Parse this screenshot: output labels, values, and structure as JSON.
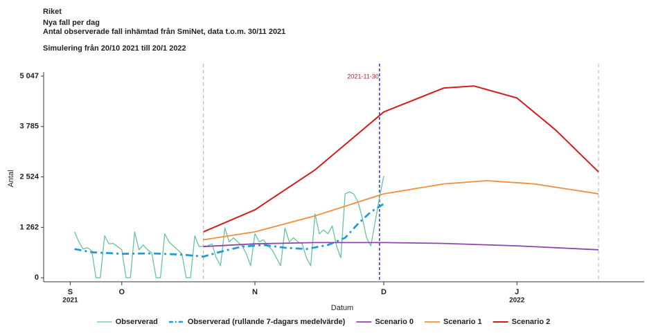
{
  "chart_data": {
    "type": "line",
    "title": "Riket",
    "subtitle": "Nya fall per dag",
    "caption": "Antal observerade fall inhämtad från SmiNet, data t.o.m. 30/11 2021",
    "note": "Simulering från 20/10 2021 till 20/1 2022",
    "xlabel": "Datum",
    "ylabel": "Antal",
    "xlim": [
      "2021-09-12",
      "2022-01-30"
    ],
    "ylim": [
      -100,
      5150
    ],
    "yticks": [
      0,
      {
        "value": 1262,
        "label": "1 262"
      },
      {
        "value": 2524,
        "label": "2 524"
      },
      {
        "value": 3785,
        "label": "3 785"
      },
      {
        "value": 5047,
        "label": "5 047"
      }
    ],
    "xticks": [
      {
        "value": "2021-09-19",
        "label": "S",
        "year": "2021"
      },
      {
        "value": "2021-10-01",
        "label": "O"
      },
      {
        "value": "2021-11-01",
        "label": "N"
      },
      {
        "value": "2021-12-01",
        "label": "D"
      },
      {
        "value": "2022-01-01",
        "label": "J",
        "year": "2022"
      }
    ],
    "vlines": [
      {
        "x": "2021-10-20",
        "color": "#bbbbbb"
      },
      {
        "x": "2021-11-30",
        "color": "#3a3aff",
        "label": "2021-11-30"
      },
      {
        "x": "2022-01-20",
        "color": "#bbbbbb"
      }
    ],
    "legend": "bottom",
    "series": [
      {
        "name": "Observerad",
        "color": "#66c2a5",
        "dash": "solid",
        "width": 1.3,
        "x": [
          "2021-09-20",
          "2021-09-21",
          "2021-09-22",
          "2021-09-23",
          "2021-09-24",
          "2021-09-25",
          "2021-09-26",
          "2021-09-27",
          "2021-09-28",
          "2021-09-29",
          "2021-09-30",
          "2021-10-01",
          "2021-10-02",
          "2021-10-03",
          "2021-10-04",
          "2021-10-05",
          "2021-10-06",
          "2021-10-07",
          "2021-10-08",
          "2021-10-09",
          "2021-10-10",
          "2021-10-11",
          "2021-10-12",
          "2021-10-13",
          "2021-10-14",
          "2021-10-15",
          "2021-10-16",
          "2021-10-17",
          "2021-10-18",
          "2021-10-19",
          "2021-10-20",
          "2021-10-21",
          "2021-10-22",
          "2021-10-23",
          "2021-10-24",
          "2021-10-25",
          "2021-10-26",
          "2021-10-27",
          "2021-10-28",
          "2021-10-29",
          "2021-10-30",
          "2021-10-31",
          "2021-11-01",
          "2021-11-02",
          "2021-11-03",
          "2021-11-04",
          "2021-11-05",
          "2021-11-06",
          "2021-11-07",
          "2021-11-08",
          "2021-11-09",
          "2021-11-10",
          "2021-11-11",
          "2021-11-12",
          "2021-11-13",
          "2021-11-14",
          "2021-11-15",
          "2021-11-16",
          "2021-11-17",
          "2021-11-18",
          "2021-11-19",
          "2021-11-20",
          "2021-11-21",
          "2021-11-22",
          "2021-11-23",
          "2021-11-24",
          "2021-11-25",
          "2021-11-26",
          "2021-11-27",
          "2021-11-28",
          "2021-11-29",
          "2021-11-30",
          "2021-12-01"
        ],
        "values": [
          1150,
          900,
          720,
          750,
          680,
          0,
          0,
          1050,
          850,
          860,
          780,
          700,
          0,
          0,
          1150,
          700,
          820,
          700,
          620,
          0,
          0,
          1100,
          900,
          800,
          700,
          600,
          0,
          0,
          1050,
          780,
          790,
          800,
          850,
          500,
          300,
          1250,
          900,
          1000,
          900,
          800,
          600,
          300,
          1100,
          900,
          950,
          800,
          700,
          500,
          300,
          1250,
          900,
          1000,
          900,
          850,
          500,
          300,
          1600,
          1100,
          1200,
          1100,
          1300,
          800,
          500,
          2100,
          2150,
          2100,
          1900,
          1500,
          1000,
          800,
          1400,
          2000,
          2550
        ]
      },
      {
        "name": "Observerad (rullande 7-dagars medelvärde)",
        "color": "#1f9bd7",
        "dash": "dashed",
        "width": 2.8,
        "x": [
          "2021-09-20",
          "2021-09-24",
          "2021-10-01",
          "2021-10-08",
          "2021-10-15",
          "2021-10-20",
          "2021-10-25",
          "2021-10-29",
          "2021-11-03",
          "2021-11-08",
          "2021-11-13",
          "2021-11-18",
          "2021-11-22",
          "2021-11-25",
          "2021-11-28",
          "2021-12-01"
        ],
        "values": [
          720,
          640,
          600,
          610,
          580,
          530,
          680,
          780,
          820,
          750,
          720,
          820,
          1000,
          1350,
          1650,
          1850
        ]
      },
      {
        "name": "Scenario 0",
        "color": "#8e44ad",
        "dash": "solid",
        "width": 1.8,
        "x": [
          "2021-10-20",
          "2021-11-01",
          "2021-11-15",
          "2021-12-01",
          "2021-12-15",
          "2022-01-01",
          "2022-01-20"
        ],
        "values": [
          780,
          850,
          880,
          880,
          860,
          800,
          700
        ]
      },
      {
        "name": "Scenario 1",
        "color": "#f28c38",
        "dash": "solid",
        "width": 1.8,
        "x": [
          "2021-10-20",
          "2021-11-01",
          "2021-11-15",
          "2021-12-01",
          "2021-12-15",
          "2021-12-25",
          "2022-01-05",
          "2022-01-20"
        ],
        "values": [
          950,
          1150,
          1550,
          2100,
          2350,
          2430,
          2350,
          2100
        ]
      },
      {
        "name": "Scenario 2",
        "color": "#d7191c",
        "dash": "solid",
        "width": 2,
        "x": [
          "2021-10-20",
          "2021-11-01",
          "2021-11-15",
          "2021-12-01",
          "2021-12-15",
          "2021-12-22",
          "2022-01-01",
          "2022-01-10",
          "2022-01-20"
        ],
        "values": [
          1150,
          1700,
          2700,
          4150,
          4750,
          4800,
          4500,
          3700,
          2650
        ]
      }
    ]
  }
}
